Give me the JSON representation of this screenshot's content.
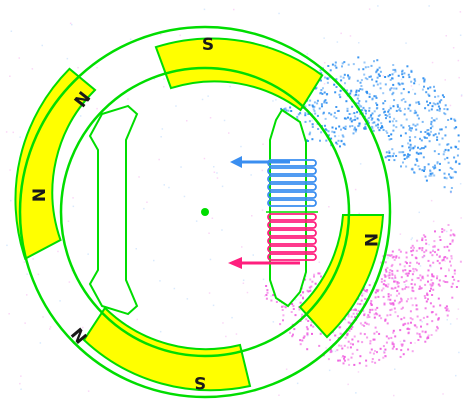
{
  "diagram": {
    "stator_poles": [
      "S",
      "N",
      "N",
      "S",
      "N",
      "N"
    ],
    "pole_colors": {
      "fill": "#ffff00",
      "outline": "#00dd00"
    },
    "coil": {
      "upper_color": "#3a8ef0",
      "lower_color": "#ff1f7e",
      "ring_color": "#00dd00"
    },
    "field_colors": {
      "blue": "#2e8ff0",
      "magenta": "#f060e0"
    },
    "icons": {
      "upper_arrow": "arrow-left-icon",
      "lower_arrow": "arrow-left-icon",
      "center": "rotor-center-dot"
    }
  }
}
